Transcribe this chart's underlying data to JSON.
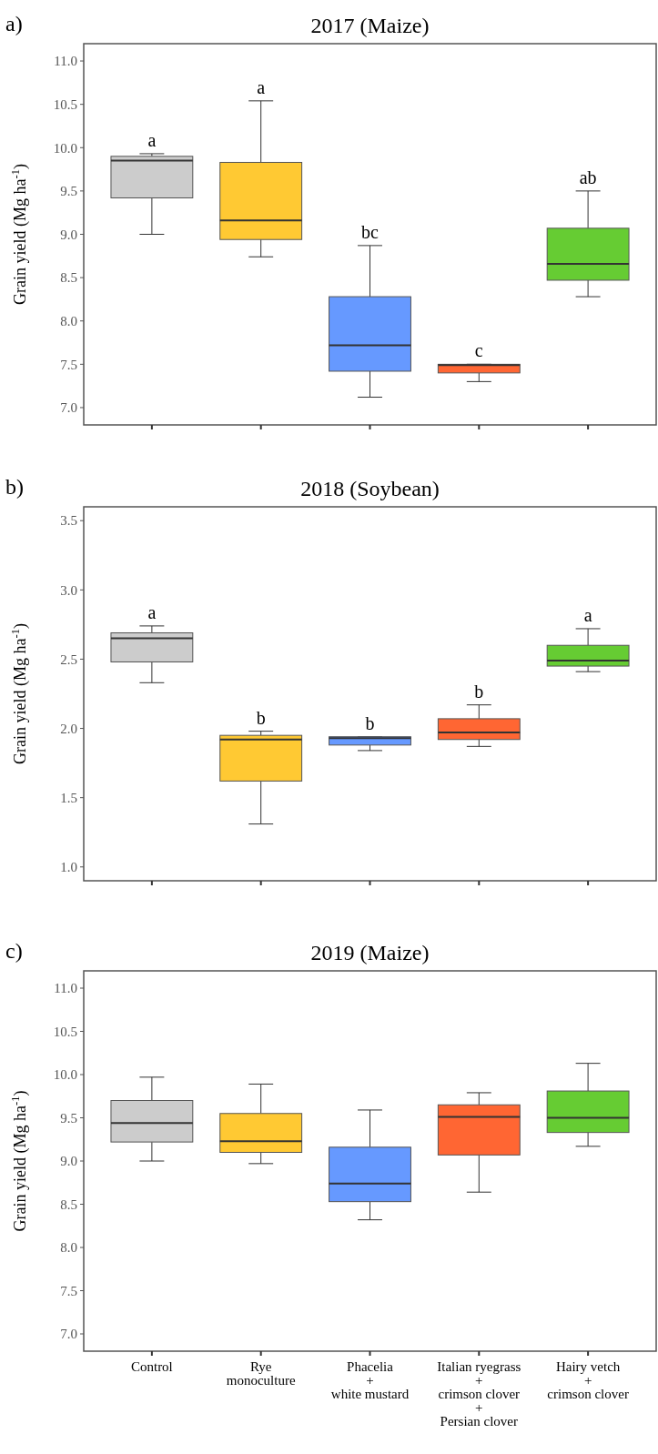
{
  "chart_data": [
    {
      "type": "box",
      "title": "2017 (Maize)",
      "ylabel": "Grain yield (Mg ha$^{-1}$)",
      "categories": [
        "Control",
        "Rye\nmonoculture",
        "Phacelia\n+\nwhite mustard",
        "Italian ryegrass\n+\ncrimson clover\n+\nPersian clover",
        "Hairy vetch\n+\ncrimson clover"
      ],
      "colors": [
        "#cccccc",
        "#ffc933",
        "#6699ff",
        "#ff6633",
        "#66cc33"
      ],
      "ylim": [
        6.8,
        11.2
      ],
      "yticks": [
        {
          "value": 7,
          "label": "7.0"
        },
        7.5,
        {
          "value": 8,
          "label": "8.0"
        },
        8.5,
        {
          "value": 9,
          "label": "9.0"
        },
        9.5,
        {
          "value": 10,
          "label": "10.0"
        },
        10.5,
        {
          "value": 11,
          "label": "11.0"
        }
      ],
      "tick_labels": "y",
      "grid": false,
      "boxes": [
        {
          "low": 9.0,
          "q1": 9.42,
          "median": 9.85,
          "q3": 9.9,
          "high": 9.93
        },
        {
          "low": 8.74,
          "q1": 8.94,
          "median": 9.16,
          "q3": 9.83,
          "high": 10.54
        },
        {
          "low": 7.12,
          "q1": 7.42,
          "median": 7.72,
          "q3": 8.28,
          "high": 8.87
        },
        {
          "low": 7.3,
          "q1": 7.4,
          "median": 7.49,
          "q3": 7.5,
          "high": 7.5
        },
        {
          "low": 8.28,
          "q1": 8.47,
          "median": 8.66,
          "q3": 9.07,
          "high": 9.5
        }
      ],
      "annotations": [
        "a)",
        {
          "text": "a",
          "x": "Control",
          "y": 9.93
        },
        {
          "text": "a",
          "x": "Rye\nmonoculture",
          "y": 10.54
        },
        {
          "text": "bc",
          "x": "Phacelia\n+\nwhite mustard",
          "y": 8.87
        },
        {
          "text": "c",
          "x": "Italian ryegrass\n+\ncrimson clover\n+\nPersian clover",
          "y": 7.5
        },
        {
          "text": "ab",
          "x": "Hairy vetch\n+\ncrimson clover",
          "y": 9.5
        }
      ]
    },
    {
      "type": "box",
      "title": "2018 (Soybean)",
      "ylabel": "Grain yield (Mg ha$^{-1}$)",
      "categories": [
        "Control",
        "Rye\nmonoculture",
        "Phacelia\n+\nwhite mustard",
        "Italian ryegrass\n+\ncrimson clover\n+\nPersian clover",
        "Hairy vetch\n+\ncrimson clover"
      ],
      "colors": [
        "#cccccc",
        "#ffc933",
        "#6699ff",
        "#ff6633",
        "#66cc33"
      ],
      "ylim": [
        0.9,
        3.6
      ],
      "yticks": [
        {
          "value": 1,
          "label": "1.0"
        },
        1.5,
        {
          "value": 2,
          "label": "2.0"
        },
        2.5,
        {
          "value": 3,
          "label": "3.0"
        },
        3.5
      ],
      "tick_labels": "y",
      "grid": false,
      "boxes": [
        {
          "low": 2.33,
          "q1": 2.48,
          "median": 2.65,
          "q3": 2.69,
          "high": 2.74
        },
        {
          "low": 1.31,
          "q1": 1.62,
          "median": 1.92,
          "q3": 1.95,
          "high": 1.98
        },
        {
          "low": 1.84,
          "q1": 1.88,
          "median": 1.93,
          "q3": 1.94,
          "high": 1.94
        },
        {
          "low": 1.87,
          "q1": 1.92,
          "median": 1.97,
          "q3": 2.07,
          "high": 2.17
        },
        {
          "low": 2.41,
          "q1": 2.45,
          "median": 2.49,
          "q3": 2.6,
          "high": 2.72
        }
      ],
      "annotations": [
        "b)",
        {
          "text": "a",
          "x": "Control",
          "y": 2.74
        },
        {
          "text": "b",
          "x": "Rye\nmonoculture",
          "y": 1.98
        },
        {
          "text": "b",
          "x": "Phacelia\n+\nwhite mustard",
          "y": 1.94
        },
        {
          "text": "b",
          "x": "Italian ryegrass\n+\ncrimson clover\n+\nPersian clover",
          "y": 2.17
        },
        {
          "text": "a",
          "x": "Hairy vetch\n+\ncrimson clover",
          "y": 2.72
        }
      ]
    },
    {
      "type": "box",
      "title": "2019 (Maize)",
      "ylabel": "Grain yield (Mg ha$^{-1}$)",
      "categories": [
        "Control",
        "Rye\nmonoculture",
        "Phacelia\n+\nwhite mustard",
        "Italian ryegrass\n+\ncrimson clover\n+\nPersian clover",
        "Hairy vetch\n+\ncrimson clover"
      ],
      "colors": [
        "#cccccc",
        "#ffc933",
        "#6699ff",
        "#ff6633",
        "#66cc33"
      ],
      "ylim": [
        6.8,
        11.2
      ],
      "yticks": [
        {
          "value": 7,
          "label": "7.0"
        },
        7.5,
        {
          "value": 8,
          "label": "8.0"
        },
        8.5,
        {
          "value": 9,
          "label": "9.0"
        },
        9.5,
        {
          "value": 10,
          "label": "10.0"
        },
        10.5,
        {
          "value": 11,
          "label": "11.0"
        }
      ],
      "grid": false,
      "boxes": [
        {
          "low": 9.0,
          "q1": 9.22,
          "median": 9.44,
          "q3": 9.7,
          "high": 9.97
        },
        {
          "low": 8.97,
          "q1": 9.1,
          "median": 9.23,
          "q3": 9.55,
          "high": 9.89
        },
        {
          "low": 8.32,
          "q1": 8.53,
          "median": 8.74,
          "q3": 9.16,
          "high": 9.59
        },
        {
          "low": 8.64,
          "q1": 9.07,
          "median": 9.51,
          "q3": 9.65,
          "high": 9.79
        },
        {
          "low": 9.17,
          "q1": 9.33,
          "median": 9.5,
          "q3": 9.81,
          "high": 10.13
        }
      ],
      "annotations": [
        "c)"
      ]
    }
  ]
}
